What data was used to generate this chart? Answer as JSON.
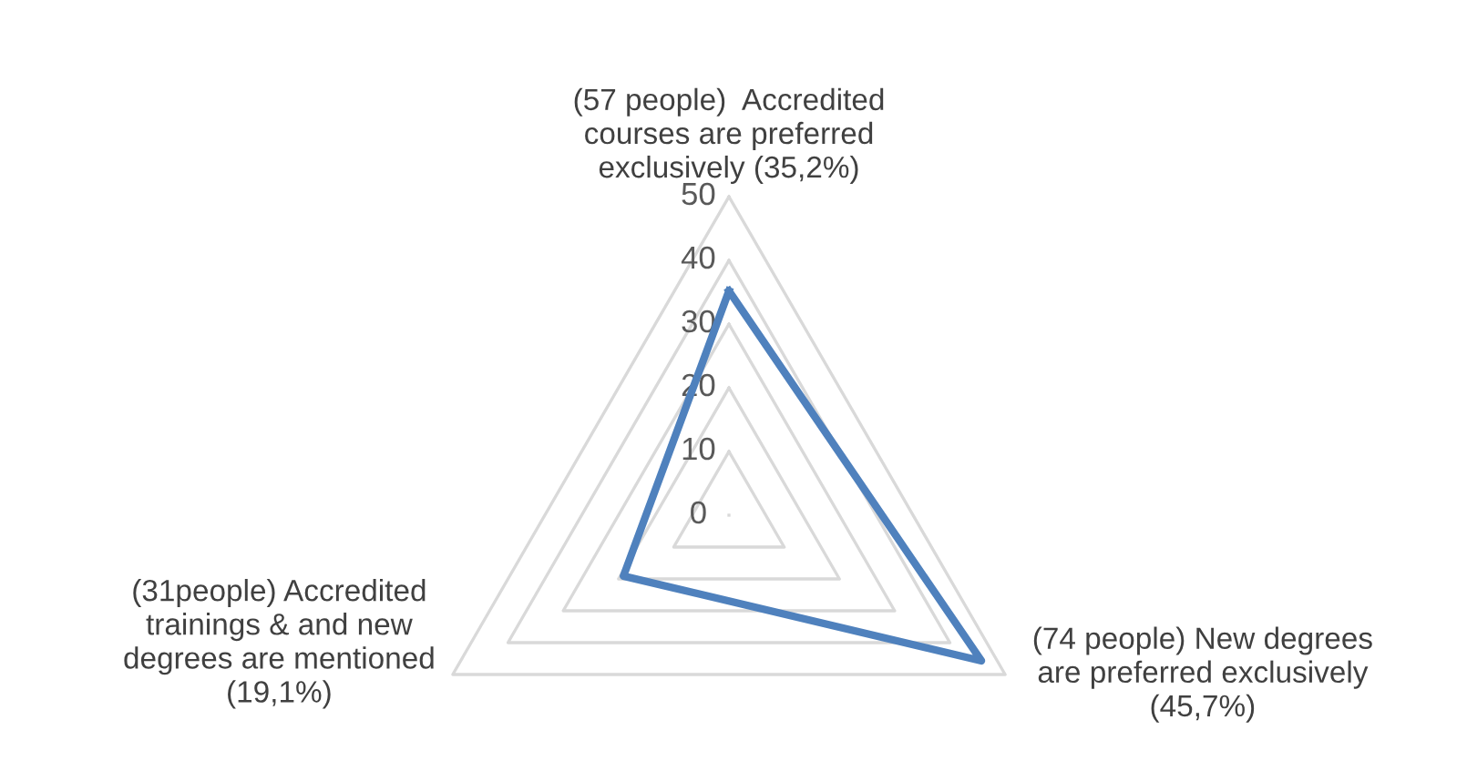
{
  "chart_data": {
    "type": "radar",
    "categories": [
      "(57 people)  Accredited\ncourses are preferred\nexclusively (35,2%)",
      "(74 people) New degrees\nare preferred exclusively\n(45,7%)",
      "(31people) Accredited\ntrainings & and new\ndegrees are mentioned\n(19,1%)"
    ],
    "series": [
      {
        "color": "#4f81bd",
        "values": [
          35.2,
          45.7,
          19.1
        ]
      }
    ],
    "ylim": [
      0,
      50
    ],
    "yticks": [
      0,
      10,
      20,
      30,
      40,
      50
    ],
    "grid": true,
    "marker": "none",
    "line_style": "solid"
  }
}
